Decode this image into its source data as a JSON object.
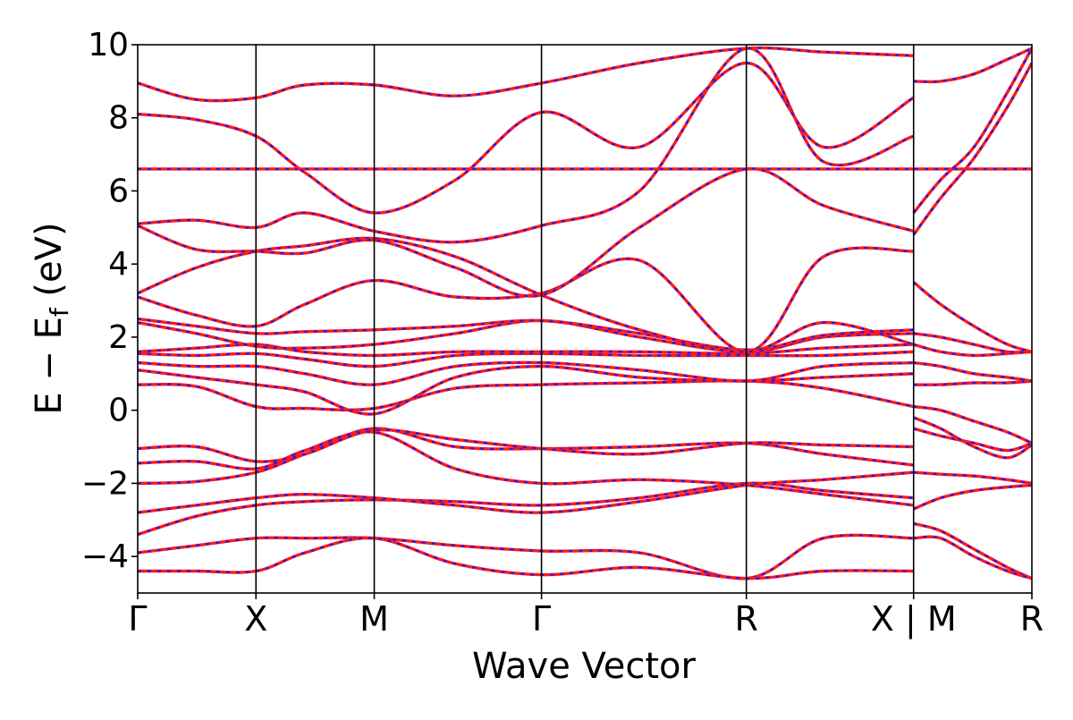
{
  "chart_data": {
    "type": "line",
    "title": "",
    "xlabel": "Wave Vector",
    "ylabel_parts": {
      "main": "E − E",
      "sub": "f",
      "tail": " (eV)"
    },
    "ylim": [
      -5,
      10
    ],
    "yticks": [
      -4,
      -2,
      0,
      2,
      4,
      6,
      8,
      10
    ],
    "ytick_labels": [
      "−4",
      "−2",
      "0",
      "2",
      "4",
      "6",
      "8",
      "10"
    ],
    "kpoint_labels": [
      "Γ",
      "X",
      "M",
      "Γ",
      "R",
      "X | M",
      "R"
    ],
    "kpoint_positions": [
      0,
      0.7071,
      1.4142,
      2.4142,
      3.6389,
      4.6389,
      5.346
    ],
    "path_break_after": 5,
    "grid": false,
    "line_styles": {
      "dft": "#ff1a1a",
      "fit": "#1a1aff"
    },
    "series": [
      {
        "style": "flat",
        "x": [
          0,
          5.346
        ],
        "y": [
          6.6,
          6.6
        ]
      },
      {
        "x": [
          0,
          0.35,
          0.7071,
          1.0,
          1.4142,
          1.9,
          2.4142,
          3.0,
          3.6389,
          4.1,
          4.6389
        ],
        "y": [
          -3.4,
          -2.9,
          -2.6,
          -2.5,
          -2.45,
          -2.5,
          -2.6,
          -2.4,
          -2.0,
          -2.2,
          -2.4
        ]
      },
      {
        "x": [
          0,
          0.35,
          0.7071,
          1.0,
          1.4142,
          1.9,
          2.4142,
          3.0,
          3.6389,
          4.1,
          4.6389
        ],
        "y": [
          -2.8,
          -2.6,
          -2.4,
          -2.3,
          -2.4,
          -2.6,
          -2.8,
          -2.5,
          -2.05,
          -1.9,
          -1.7
        ]
      },
      {
        "x": [
          0,
          0.35,
          0.7071,
          1.0,
          1.4142,
          1.9,
          2.4142,
          3.0,
          3.6389,
          4.1,
          4.6389
        ],
        "y": [
          -2.0,
          -1.95,
          -1.7,
          -1.2,
          -0.5,
          -1.0,
          -1.05,
          -1.0,
          -0.9,
          -1.2,
          -1.5
        ]
      },
      {
        "x": [
          0,
          0.35,
          0.7071,
          1.0,
          1.4142,
          1.9,
          2.4142,
          3.0,
          3.6389,
          4.1,
          4.6389
        ],
        "y": [
          -1.05,
          -1.0,
          -1.4,
          -1.2,
          -0.55,
          -0.8,
          -1.05,
          -1.2,
          -0.9,
          -0.95,
          -1.0
        ]
      },
      {
        "x": [
          0,
          0.35,
          0.7071,
          1.0,
          1.4142,
          1.9,
          2.4142,
          3.0,
          3.6389,
          4.1,
          4.6389
        ],
        "y": [
          -1.45,
          -1.4,
          -1.6,
          -1.1,
          -0.6,
          -1.6,
          -2.0,
          -1.9,
          -2.05,
          -2.3,
          -2.6
        ]
      },
      {
        "x": [
          0,
          0.35,
          0.7071,
          1.0,
          1.4142,
          1.9,
          2.4142,
          3.0,
          3.6389,
          4.1,
          4.6389
        ],
        "y": [
          -3.9,
          -3.7,
          -3.5,
          -3.5,
          -3.5,
          -3.7,
          -3.85,
          -3.9,
          -4.6,
          -3.5,
          -3.5
        ]
      },
      {
        "x": [
          0,
          0.35,
          0.7071,
          1.0,
          1.4142,
          1.9,
          2.4142,
          3.0,
          3.6389,
          4.1,
          4.6389
        ],
        "y": [
          -4.4,
          -4.4,
          -4.4,
          -3.9,
          -3.5,
          -4.2,
          -4.5,
          -4.3,
          -4.6,
          -4.4,
          -4.4
        ]
      },
      {
        "x": [
          0,
          0.35,
          0.7071,
          1.0,
          1.4142,
          1.9,
          2.4142,
          3.0,
          3.6389,
          4.1,
          4.6389
        ],
        "y": [
          0.7,
          0.65,
          0.1,
          0.05,
          0.05,
          0.6,
          0.7,
          0.75,
          0.8,
          0.6,
          0.1
        ]
      },
      {
        "x": [
          0,
          0.35,
          0.7071,
          1.0,
          1.4142,
          1.9,
          2.4142,
          3.0,
          3.6389,
          4.1,
          4.6389
        ],
        "y": [
          1.1,
          0.9,
          0.7,
          0.5,
          -0.1,
          0.9,
          1.2,
          0.9,
          0.8,
          0.9,
          1.0
        ]
      },
      {
        "x": [
          0,
          0.35,
          0.7071,
          1.0,
          1.4142,
          1.9,
          2.4142,
          3.0,
          3.6389,
          4.1,
          4.6389
        ],
        "y": [
          1.3,
          1.2,
          1.2,
          1.0,
          0.7,
          1.2,
          1.3,
          1.1,
          0.8,
          1.2,
          1.3
        ]
      },
      {
        "x": [
          0,
          0.35,
          0.7071,
          1.0,
          1.4142,
          1.9,
          2.4142,
          3.0,
          3.6389,
          4.1,
          4.6389
        ],
        "y": [
          1.55,
          1.5,
          1.55,
          1.4,
          1.2,
          1.5,
          1.55,
          1.5,
          1.5,
          1.5,
          1.6
        ]
      },
      {
        "x": [
          0,
          0.35,
          0.7071,
          1.0,
          1.4142,
          1.9,
          2.4142,
          3.0,
          3.6389,
          4.1,
          4.6389
        ],
        "y": [
          1.6,
          1.7,
          1.8,
          1.6,
          1.5,
          1.6,
          1.6,
          1.6,
          1.55,
          1.7,
          1.8
        ]
      },
      {
        "x": [
          0,
          0.35,
          0.7071,
          1.0,
          1.4142,
          1.9,
          2.4142,
          3.0,
          3.6389,
          4.1,
          4.6389
        ],
        "y": [
          2.4,
          2.1,
          1.75,
          1.7,
          1.8,
          2.1,
          2.45,
          2.0,
          1.6,
          2.0,
          2.1
        ]
      },
      {
        "x": [
          0,
          0.35,
          0.7071,
          1.0,
          1.4142,
          1.9,
          2.4142,
          3.0,
          3.6389,
          4.1,
          4.6389
        ],
        "y": [
          2.5,
          2.3,
          2.1,
          2.15,
          2.2,
          2.3,
          2.45,
          2.1,
          1.65,
          2.05,
          2.2
        ]
      },
      {
        "x": [
          0,
          0.35,
          0.7071,
          1.0,
          1.4142,
          1.9,
          2.4142,
          3.0,
          3.6389,
          4.1,
          4.6389
        ],
        "y": [
          3.1,
          2.6,
          2.3,
          2.9,
          3.55,
          3.1,
          3.2,
          4.1,
          1.6,
          4.2,
          4.35
        ]
      },
      {
        "x": [
          0,
          0.35,
          0.7071,
          1.0,
          1.4142,
          1.9,
          2.4142,
          3.0,
          3.6389,
          4.1,
          4.6389
        ],
        "y": [
          3.2,
          3.9,
          4.35,
          4.5,
          4.7,
          4.2,
          3.15,
          2.2,
          1.6,
          2.4,
          1.8
        ]
      },
      {
        "x": [
          0,
          0.35,
          0.7071,
          1.0,
          1.4142,
          1.9,
          2.4142,
          3.0,
          3.6389,
          4.1,
          4.6389
        ],
        "y": [
          5.05,
          4.4,
          4.35,
          4.3,
          4.65,
          3.9,
          3.15,
          5.0,
          6.6,
          5.6,
          4.9
        ]
      },
      {
        "x": [
          0,
          0.35,
          0.7071,
          1.0,
          1.4142,
          1.9,
          2.4142,
          3.0,
          3.6389,
          4.1,
          4.6389
        ],
        "y": [
          5.1,
          5.2,
          5.0,
          5.4,
          4.9,
          4.6,
          5.05,
          6.0,
          9.9,
          6.8,
          7.5
        ]
      },
      {
        "x": [
          0,
          0.35,
          0.7071,
          1.0,
          1.4142,
          1.9,
          2.4142,
          3.0,
          3.6389,
          4.1,
          4.6389
        ],
        "y": [
          8.1,
          7.95,
          7.5,
          6.5,
          5.4,
          6.3,
          8.15,
          7.2,
          9.5,
          7.2,
          8.55
        ]
      },
      {
        "x": [
          0,
          0.35,
          0.7071,
          1.0,
          1.4142,
          1.9,
          2.4142,
          3.0,
          3.6389,
          4.1,
          4.6389
        ],
        "y": [
          8.95,
          8.5,
          8.55,
          8.9,
          8.9,
          8.6,
          8.95,
          9.5,
          9.9,
          9.8,
          9.7
        ]
      },
      {
        "x": [
          4.6389,
          4.8,
          5.0,
          5.2,
          5.346
        ],
        "y": [
          -3.1,
          -3.3,
          -3.8,
          -4.3,
          -4.6
        ]
      },
      {
        "x": [
          4.6389,
          4.8,
          5.0,
          5.2,
          5.346
        ],
        "y": [
          -2.7,
          -2.4,
          -2.2,
          -2.1,
          -2.05
        ]
      },
      {
        "x": [
          4.6389,
          4.8,
          5.0,
          5.2,
          5.346
        ],
        "y": [
          -1.7,
          -1.75,
          -1.8,
          -1.9,
          -2.0
        ]
      },
      {
        "x": [
          4.6389,
          4.8,
          5.0,
          5.2,
          5.346
        ],
        "y": [
          -0.5,
          -0.7,
          -0.9,
          -1.1,
          -0.9
        ]
      },
      {
        "x": [
          4.6389,
          4.8,
          5.0,
          5.2,
          5.346
        ],
        "y": [
          -0.2,
          -0.5,
          -1.0,
          -1.3,
          -0.95
        ]
      },
      {
        "x": [
          4.6389,
          4.8,
          5.0,
          5.2,
          5.346
        ],
        "y": [
          0.1,
          0.0,
          -0.3,
          -0.6,
          -0.9
        ]
      },
      {
        "x": [
          4.6389,
          4.8,
          5.0,
          5.2,
          5.346
        ],
        "y": [
          0.7,
          0.7,
          0.75,
          0.75,
          0.8
        ]
      },
      {
        "x": [
          4.6389,
          4.8,
          5.0,
          5.2,
          5.346
        ],
        "y": [
          1.3,
          1.2,
          1.0,
          0.9,
          0.8
        ]
      },
      {
        "x": [
          4.6389,
          4.8,
          5.0,
          5.2,
          5.346
        ],
        "y": [
          1.8,
          1.6,
          1.5,
          1.55,
          1.6
        ]
      },
      {
        "x": [
          4.6389,
          4.8,
          5.0,
          5.2,
          5.346
        ],
        "y": [
          2.1,
          2.0,
          1.8,
          1.6,
          1.6
        ]
      },
      {
        "x": [
          4.6389,
          4.8,
          5.0,
          5.2,
          5.346
        ],
        "y": [
          3.5,
          2.9,
          2.3,
          1.8,
          1.6
        ]
      },
      {
        "x": [
          4.6389,
          4.8,
          5.0,
          5.2,
          5.346
        ],
        "y": [
          5.4,
          6.3,
          7.2,
          8.7,
          9.9
        ]
      },
      {
        "x": [
          4.6389,
          4.8,
          5.0,
          5.2,
          5.346
        ],
        "y": [
          4.8,
          5.8,
          6.9,
          8.3,
          9.5
        ]
      },
      {
        "x": [
          4.6389,
          4.8,
          5.0,
          5.2,
          5.346
        ],
        "y": [
          9.0,
          9.0,
          9.2,
          9.6,
          9.9
        ]
      },
      {
        "x": [
          4.6389,
          4.8,
          5.0,
          5.2,
          5.346
        ],
        "y": [
          -3.5,
          -3.5,
          -4.0,
          -4.4,
          -4.6
        ]
      }
    ]
  }
}
